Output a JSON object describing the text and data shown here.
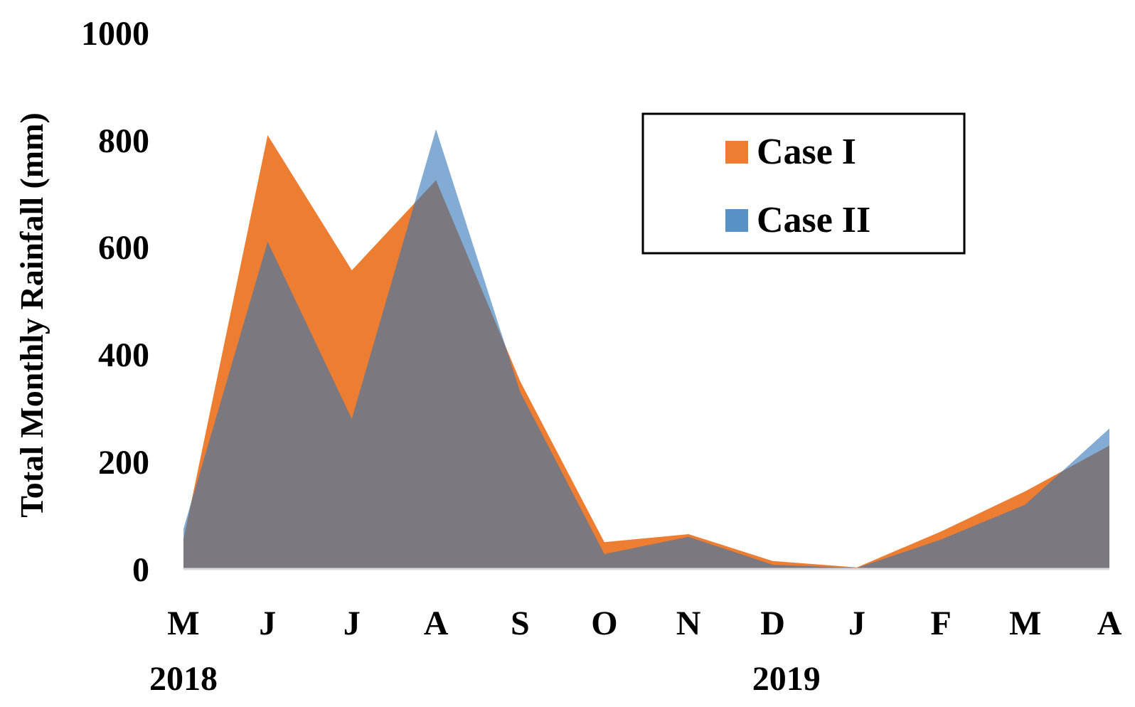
{
  "chart_data": {
    "type": "area",
    "ylabel": "Total Monthly Rainfall (mm)",
    "categories": [
      "M",
      "J",
      "J",
      "A",
      "S",
      "O",
      "N",
      "D",
      "J",
      "F",
      "M",
      "A"
    ],
    "series": [
      {
        "name": "Case I",
        "color": "#ed7d31",
        "values": [
          55,
          809,
          557,
          725,
          350,
          50,
          65,
          15,
          3,
          70,
          145,
          230
        ]
      },
      {
        "name": "Case II",
        "color": "#2e75b6",
        "values": [
          75,
          610,
          280,
          820,
          330,
          28,
          60,
          8,
          2,
          55,
          120,
          262
        ]
      }
    ],
    "ylim": [
      0,
      1000
    ],
    "yticks": [
      0,
      200,
      400,
      600,
      800,
      1000
    ],
    "legend": "top right",
    "annotations": [
      "2018",
      "2019"
    ]
  }
}
